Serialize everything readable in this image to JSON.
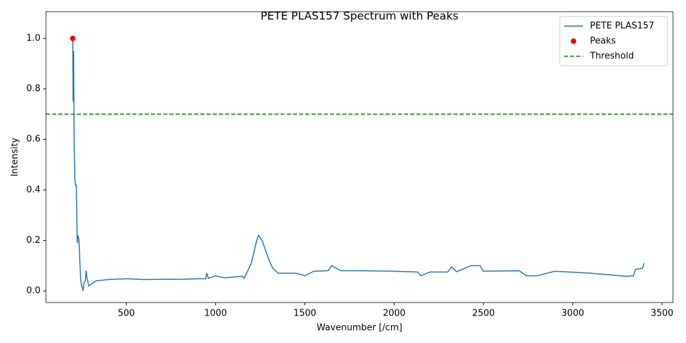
{
  "chart_data": {
    "type": "line",
    "title": "PETE PLAS157 Spectrum with Peaks",
    "xlabel": "Wavenumber [/cm]",
    "ylabel": "Intensity",
    "xlim": [
      50,
      3561
    ],
    "ylim": [
      -0.046,
      1.106
    ],
    "xticks": [
      500,
      1000,
      1500,
      2000,
      2500,
      3000,
      3500
    ],
    "yticks": [
      {
        "value": 0,
        "label": "0.0"
      },
      0.2,
      0.4,
      0.6,
      0.8,
      {
        "value": 1,
        "label": "1.0"
      }
    ],
    "legend": "upper right",
    "series": [
      {
        "name": "PETE PLAS157",
        "color": "#1f77b4",
        "x": [
          200,
          202,
          205,
          208,
          212,
          215,
          220,
          225,
          230,
          235,
          240,
          245,
          250,
          258,
          262,
          270,
          275,
          280,
          290,
          310,
          330,
          400,
          500,
          600,
          700,
          800,
          900,
          945,
          950,
          960,
          1000,
          1050,
          1150,
          1160,
          1180,
          1200,
          1220,
          1230,
          1240,
          1260,
          1280,
          1300,
          1320,
          1350,
          1400,
          1450,
          1500,
          1550,
          1630,
          1650,
          1700,
          1800,
          2000,
          2130,
          2150,
          2200,
          2300,
          2320,
          2350,
          2430,
          2480,
          2500,
          2700,
          2740,
          2800,
          2900,
          3100,
          3300,
          3340,
          3350,
          3390,
          3400
        ],
        "values": [
          1.0,
          0.75,
          0.95,
          0.57,
          0.44,
          0.42,
          0.42,
          0.19,
          0.22,
          0.2,
          0.11,
          0.04,
          0.02,
          0.0,
          0.03,
          0.04,
          0.08,
          0.05,
          0.02,
          0.03,
          0.04,
          0.045,
          0.048,
          0.045,
          0.046,
          0.046,
          0.048,
          0.048,
          0.07,
          0.05,
          0.06,
          0.052,
          0.058,
          0.05,
          0.08,
          0.11,
          0.17,
          0.2,
          0.22,
          0.2,
          0.16,
          0.12,
          0.09,
          0.07,
          0.07,
          0.07,
          0.06,
          0.078,
          0.08,
          0.1,
          0.08,
          0.08,
          0.078,
          0.075,
          0.06,
          0.075,
          0.075,
          0.095,
          0.076,
          0.1,
          0.1,
          0.078,
          0.08,
          0.06,
          0.06,
          0.078,
          0.07,
          0.058,
          0.06,
          0.085,
          0.09,
          0.11
        ]
      }
    ],
    "peaks": {
      "name": "Peaks",
      "color": "#ff0000",
      "x": [
        200
      ],
      "values": [
        1.0
      ]
    },
    "threshold": {
      "name": "Threshold",
      "color": "#008000",
      "value": 0.7
    }
  }
}
